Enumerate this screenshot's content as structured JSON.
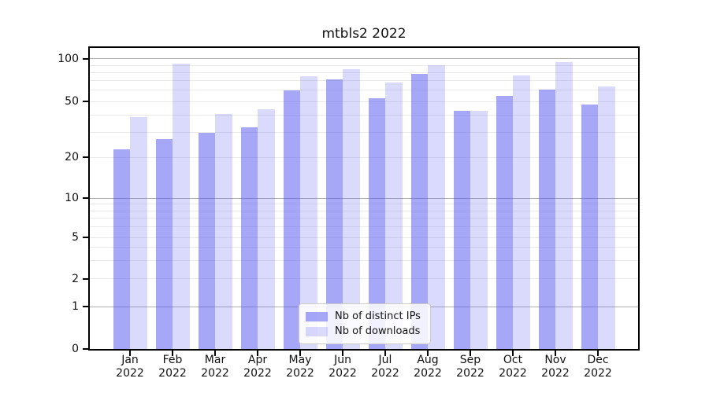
{
  "chart_data": {
    "type": "bar",
    "title": "mtbls2 2022",
    "categories": [
      "Jan",
      "Feb",
      "Mar",
      "Apr",
      "May",
      "Jun",
      "Jul",
      "Aug",
      "Sep",
      "Oct",
      "Nov",
      "Dec"
    ],
    "category_year": "2022",
    "series": [
      {
        "name": "Nb of distinct IPs",
        "color": "rgba(86,86,240,0.52)",
        "values": [
          23,
          27,
          30,
          33,
          60,
          72,
          53,
          78,
          43,
          55,
          61,
          48
        ]
      },
      {
        "name": "Nb of downloads",
        "color": "rgba(86,86,240,0.22)",
        "values": [
          39,
          92,
          41,
          44,
          75,
          84,
          68,
          90,
          43,
          76,
          95,
          64
        ]
      }
    ],
    "yscale": "symlog",
    "ylim": [
      0,
      115
    ],
    "y_ticks": [
      0,
      1,
      2,
      5,
      10,
      20,
      50,
      100
    ],
    "y_major_gridlines": [
      1,
      10,
      100
    ],
    "y_minor_gridlines": [
      2,
      3,
      4,
      5,
      6,
      7,
      8,
      9,
      20,
      30,
      40,
      50,
      60,
      70,
      80,
      90
    ],
    "grid": "horizontal",
    "legend_position": "lower center"
  },
  "colors": {
    "bar_distinct_ips_on_white": "#a7a7f7",
    "bar_downloads_on_white": "#dadaf9",
    "grid_minor": "#e9e9e9",
    "grid_major": "#b0b0b0",
    "axis_frame": "#000000",
    "text": "#111111",
    "legend_border": "#cccccc"
  }
}
